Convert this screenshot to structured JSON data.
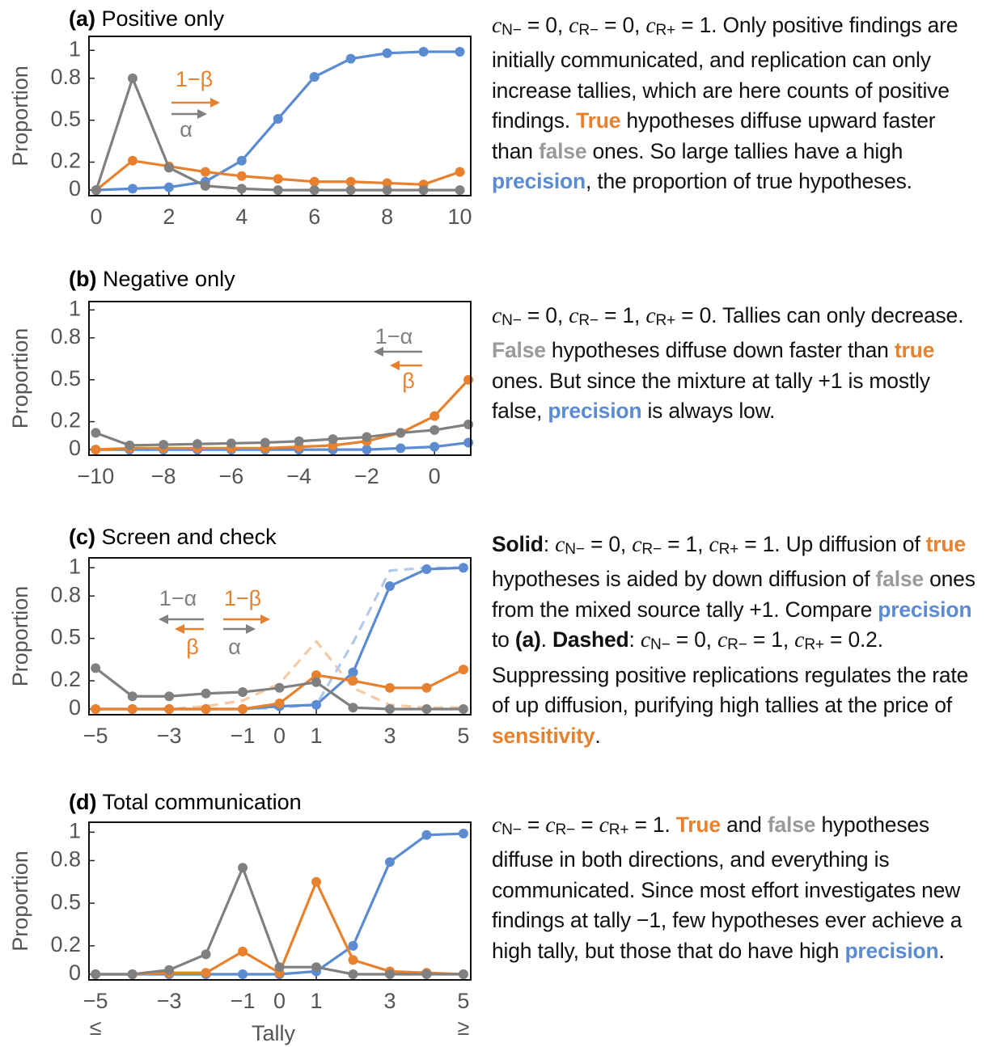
{
  "chart_data": [
    {
      "type": "line",
      "label": "(a)",
      "title": "Positive only",
      "ylabel": "Proportion",
      "x": [
        0,
        1,
        2,
        3,
        4,
        5,
        6,
        7,
        8,
        9,
        10
      ],
      "xlim": [
        -0.2,
        10.3
      ],
      "xticks": [
        0,
        2,
        4,
        6,
        8,
        10
      ],
      "ylim": [
        -0.04,
        1.1
      ],
      "yticks": [
        0,
        0.2,
        0.5,
        0.8,
        1
      ],
      "series": [
        {
          "color": "#5b8bd0",
          "values": [
            0,
            0.01,
            0.02,
            0.06,
            0.21,
            0.51,
            0.81,
            0.94,
            0.98,
            0.99,
            0.99
          ]
        },
        {
          "color": "#e8812e",
          "values": [
            0,
            0.21,
            0.17,
            0.13,
            0.1,
            0.08,
            0.06,
            0.06,
            0.05,
            0.04,
            0.13
          ]
        },
        {
          "color": "#808080",
          "values": [
            0,
            0.8,
            0.16,
            0.03,
            0.01,
            0,
            0,
            0,
            0,
            0,
            0
          ]
        }
      ],
      "annotations": [
        {
          "text": "1−β",
          "color": "#e8812e",
          "arrow": "right"
        },
        {
          "text": "α",
          "color": "#808080",
          "arrow": "right"
        }
      ]
    },
    {
      "type": "line",
      "label": "(b)",
      "title": "Negative only",
      "ylabel": "Proportion",
      "x": [
        -10,
        -9,
        -8,
        -7,
        -6,
        -5,
        -4,
        -3,
        -2,
        -1,
        0,
        1
      ],
      "xlim": [
        -10.2,
        1.07
      ],
      "xticks": [
        {
          "value": -10,
          "label": "−10"
        },
        {
          "value": -8,
          "label": "−8"
        },
        {
          "value": -6,
          "label": "−6"
        },
        {
          "value": -4,
          "label": "−4"
        },
        {
          "value": -2,
          "label": "−2"
        },
        0
      ],
      "ylim": [
        -0.04,
        1.06
      ],
      "yticks": [
        0,
        0.2,
        0.5,
        0.8,
        1
      ],
      "series": [
        {
          "color": "#5b8bd0",
          "values": [
            0,
            0,
            0,
            0,
            0,
            0,
            0,
            0,
            0,
            0.01,
            0.02,
            0.05
          ]
        },
        {
          "color": "#e8812e",
          "values": [
            0,
            0.01,
            0.01,
            0.01,
            0.01,
            0.01,
            0.02,
            0.03,
            0.06,
            0.12,
            0.24,
            0.5
          ]
        },
        {
          "color": "#808080",
          "values": [
            0.12,
            0.03,
            0.035,
            0.04,
            0.045,
            0.05,
            0.06,
            0.075,
            0.09,
            0.12,
            0.14,
            0.18
          ]
        }
      ],
      "annotations": [
        {
          "text": "1−α",
          "color": "#808080",
          "arrow": "left"
        },
        {
          "text": "β",
          "color": "#e8812e",
          "arrow": "left"
        }
      ]
    },
    {
      "type": "line",
      "label": "(c)",
      "title": "Screen and check",
      "ylabel": "Proportion",
      "x": [
        -5,
        -4,
        -3,
        -2,
        -1,
        0,
        1,
        2,
        3,
        4,
        5
      ],
      "xlim": [
        -5.18,
        5.2
      ],
      "xticks": [
        {
          "value": -5,
          "label": "−5"
        },
        {
          "value": -3,
          "label": "−3"
        },
        {
          "value": -1,
          "label": "−1"
        },
        0,
        1,
        3,
        5
      ],
      "ylim": [
        -0.04,
        1.07
      ],
      "yticks": [
        0,
        0.2,
        0.5,
        0.8,
        1
      ],
      "series": [
        {
          "color": "#f6c9a3",
          "dashed": true,
          "values": [
            0,
            0,
            0,
            0.02,
            0.06,
            0.18,
            0.48,
            0.15,
            0.03,
            0.01,
            0.01
          ]
        },
        {
          "color": "#b3c9ea",
          "dashed": true,
          "values": [
            0,
            0,
            0,
            0,
            0,
            0.01,
            0.03,
            0.47,
            0.98,
            1,
            1
          ]
        },
        {
          "color": "#5b8bd0",
          "values": [
            0,
            0,
            0,
            0,
            0,
            0.02,
            0.03,
            0.26,
            0.87,
            0.99,
            1
          ]
        },
        {
          "color": "#e8812e",
          "values": [
            0,
            0,
            0,
            0,
            0,
            0.04,
            0.24,
            0.2,
            0.15,
            0.15,
            0.28
          ]
        },
        {
          "color": "#808080",
          "values": [
            0.29,
            0.09,
            0.09,
            0.11,
            0.12,
            0.15,
            0.19,
            0.01,
            0,
            0,
            0
          ]
        }
      ],
      "annotations": [
        {
          "text": "1−α",
          "color": "#808080",
          "arrow": "left"
        },
        {
          "text": "β",
          "color": "#e8812e",
          "arrow": "left"
        },
        {
          "text": "1−β",
          "color": "#e8812e",
          "arrow": "right"
        },
        {
          "text": "α",
          "color": "#808080",
          "arrow": "right"
        }
      ]
    },
    {
      "type": "line",
      "label": "(d)",
      "title": "Total communication",
      "ylabel": "Proportion",
      "xlabel": "Tally",
      "x": [
        -5,
        -4,
        -3,
        -2,
        -1,
        0,
        1,
        2,
        3,
        4,
        5
      ],
      "xlim": [
        -5.18,
        5.2
      ],
      "xticks": [
        {
          "value": -5,
          "label": "−5",
          "sublabel": "≤"
        },
        {
          "value": -3,
          "label": "−3"
        },
        {
          "value": -1,
          "label": "−1"
        },
        0,
        1,
        3,
        {
          "value": 5,
          "label": "5",
          "sublabel": "≥"
        }
      ],
      "ylim": [
        -0.04,
        1.07
      ],
      "yticks": [
        0,
        0.2,
        0.5,
        0.8,
        1
      ],
      "series": [
        {
          "color": "#5b8bd0",
          "values": [
            0,
            0,
            0,
            0,
            0,
            0,
            0.02,
            0.2,
            0.79,
            0.98,
            0.99
          ]
        },
        {
          "color": "#e8812e",
          "values": [
            0,
            0,
            0.01,
            0.01,
            0.16,
            0.01,
            0.65,
            0.1,
            0.02,
            0.01,
            0
          ]
        },
        {
          "color": "#808080",
          "values": [
            0,
            0,
            0.03,
            0.14,
            0.75,
            0.05,
            0.05,
            0,
            0,
            0,
            0
          ]
        }
      ],
      "annotations": []
    }
  ],
  "captions": [
    {
      "runs": [
        {
          "text": "c",
          "italic": true
        },
        {
          "text": "N−",
          "sub": true
        },
        {
          "text": " = 0, "
        },
        {
          "text": "c",
          "italic": true
        },
        {
          "text": "R−",
          "sub": true
        },
        {
          "text": " = 0, "
        },
        {
          "text": "c",
          "italic": true
        },
        {
          "text": "R+",
          "sub": true
        },
        {
          "text": " = 1. Only positive findings are initially communicated, and replication can only increase tallies, which are here counts of positive findings. "
        },
        {
          "text": "True",
          "bold": true,
          "color": "#e8812e"
        },
        {
          "text": " hypotheses diffuse upward faster than "
        },
        {
          "text": "false",
          "bold": true,
          "color": "#9a9a9a"
        },
        {
          "text": " ones. So large tallies have a high "
        },
        {
          "text": "precision",
          "bold": true,
          "color": "#5b8bd0"
        },
        {
          "text": ", the proportion of true hypotheses."
        }
      ]
    },
    {
      "runs": [
        {
          "text": "c",
          "italic": true
        },
        {
          "text": "N−",
          "sub": true
        },
        {
          "text": " = 0, "
        },
        {
          "text": "c",
          "italic": true
        },
        {
          "text": "R−",
          "sub": true
        },
        {
          "text": " = 1, "
        },
        {
          "text": "c",
          "italic": true
        },
        {
          "text": "R+",
          "sub": true
        },
        {
          "text": " = 0. Tallies can only decrease. "
        },
        {
          "text": "False",
          "bold": true,
          "color": "#9a9a9a"
        },
        {
          "text": " hypotheses diffuse down faster than "
        },
        {
          "text": "true",
          "bold": true,
          "color": "#e8812e"
        },
        {
          "text": " ones. But since the mixture at tally +1 is mostly false, "
        },
        {
          "text": "precision",
          "bold": true,
          "color": "#5b8bd0"
        },
        {
          "text": " is always low."
        }
      ]
    },
    {
      "runs": [
        {
          "text": "Solid",
          "bold": true
        },
        {
          "text": ": "
        },
        {
          "text": "c",
          "italic": true
        },
        {
          "text": "N−",
          "sub": true
        },
        {
          "text": " = 0, "
        },
        {
          "text": "c",
          "italic": true
        },
        {
          "text": "R−",
          "sub": true
        },
        {
          "text": " = 1, "
        },
        {
          "text": "c",
          "italic": true
        },
        {
          "text": "R+",
          "sub": true
        },
        {
          "text": " = 1. Up diffusion of "
        },
        {
          "text": "true",
          "bold": true,
          "color": "#e8812e"
        },
        {
          "text": " hypotheses is aided by down diffusion of "
        },
        {
          "text": "false",
          "bold": true,
          "color": "#9a9a9a"
        },
        {
          "text": " ones from the mixed source tally +1. Compare "
        },
        {
          "text": "precision",
          "bold": true,
          "color": "#5b8bd0"
        },
        {
          "text": " to "
        },
        {
          "text": "(a)",
          "bold": true
        },
        {
          "text": ". "
        },
        {
          "text": "Dashed",
          "bold": true
        },
        {
          "text": ": "
        },
        {
          "text": "c",
          "italic": true
        },
        {
          "text": "N−",
          "sub": true
        },
        {
          "text": " = 0, "
        },
        {
          "text": "c",
          "italic": true
        },
        {
          "text": "R−",
          "sub": true
        },
        {
          "text": " = 1, "
        },
        {
          "text": "c",
          "italic": true
        },
        {
          "text": "R+",
          "sub": true
        },
        {
          "text": " = 0.2. Suppressing positive replications regulates the rate of up diffusion, purifying high tallies at the price of "
        },
        {
          "text": "sensitivity",
          "bold": true,
          "color": "#e8812e"
        },
        {
          "text": "."
        }
      ]
    },
    {
      "runs": [
        {
          "text": "c",
          "italic": true
        },
        {
          "text": "N−",
          "sub": true
        },
        {
          "text": " = "
        },
        {
          "text": "c",
          "italic": true
        },
        {
          "text": "R−",
          "sub": true
        },
        {
          "text": " = "
        },
        {
          "text": "c",
          "italic": true
        },
        {
          "text": "R+",
          "sub": true
        },
        {
          "text": " = 1. "
        },
        {
          "text": "True",
          "bold": true,
          "color": "#e8812e"
        },
        {
          "text": " and "
        },
        {
          "text": "false",
          "bold": true,
          "color": "#9a9a9a"
        },
        {
          "text": " hypotheses diffuse in both directions, and everything is communicated. Since most effort investigates new findings at tally −1, few hypotheses ever achieve a high tally, but those that do have high "
        },
        {
          "text": "precision",
          "bold": true,
          "color": "#5b8bd0"
        },
        {
          "text": "."
        }
      ]
    }
  ]
}
